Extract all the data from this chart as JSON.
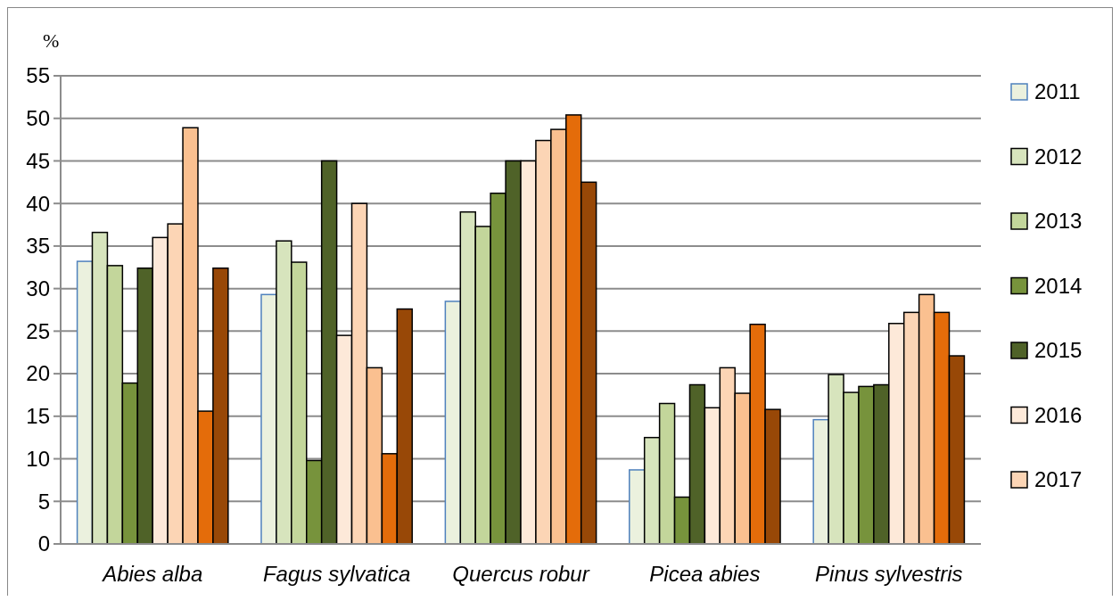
{
  "chart_data": {
    "type": "bar",
    "ylabel": "%",
    "categories": [
      "Abies alba",
      "Fagus sylvatica",
      "Quercus robur",
      "Picea abies",
      "Pinus sylvestris"
    ],
    "ylim": [
      0,
      55
    ],
    "yticks": [
      0,
      5,
      10,
      15,
      20,
      25,
      30,
      35,
      40,
      45,
      50,
      55
    ],
    "grid": "y",
    "legend": "right",
    "series": [
      {
        "name": "2011",
        "color": "#ebf1de",
        "values": [
          33.2,
          29.3,
          28.5,
          8.7,
          14.6
        ]
      },
      {
        "name": "2012",
        "color": "#d7e4bd",
        "values": [
          36.6,
          35.6,
          39.0,
          12.5,
          19.9
        ]
      },
      {
        "name": "2013",
        "color": "#c3d69b",
        "values": [
          32.7,
          33.1,
          37.3,
          16.5,
          17.8
        ]
      },
      {
        "name": "2014",
        "color": "#77933c",
        "values": [
          18.9,
          9.8,
          41.2,
          5.5,
          18.5
        ]
      },
      {
        "name": "2015",
        "color": "#4f6228",
        "values": [
          32.4,
          45.0,
          45.0,
          18.7,
          18.7
        ]
      },
      {
        "name": "2016",
        "color": "#fde9d9",
        "values": [
          36.0,
          24.5,
          45.0,
          16.0,
          25.9
        ]
      },
      {
        "name": "2017",
        "color": "#fcd5b5",
        "values": [
          37.6,
          40.0,
          47.4,
          20.7,
          27.2
        ]
      },
      {
        "color": "#fac090",
        "values": [
          48.9,
          20.7,
          48.7,
          17.7,
          29.3
        ]
      },
      {
        "color": "#e46c0a",
        "values": [
          15.6,
          10.6,
          50.4,
          25.8,
          27.2
        ]
      },
      {
        "color": "#984807",
        "values": [
          32.4,
          27.6,
          42.5,
          15.8,
          22.1
        ]
      }
    ]
  }
}
